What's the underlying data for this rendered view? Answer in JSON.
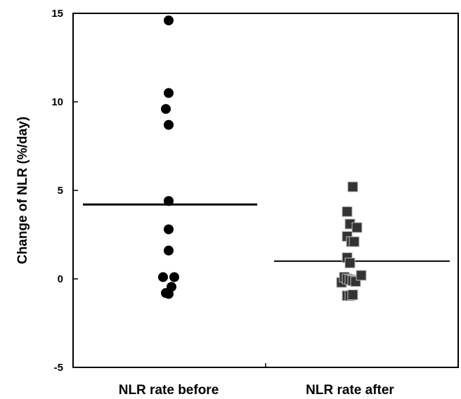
{
  "chart_data": {
    "type": "scatter",
    "title": "",
    "ylabel": "Change of  NLR  (%/day)",
    "xlabel": "",
    "categories": [
      "NLR rate before",
      "NLR rate after"
    ],
    "ylim": [
      -5,
      15
    ],
    "yticks": [
      -5,
      0,
      5,
      10,
      15
    ],
    "grid": false,
    "series": [
      {
        "category": "NLR rate before",
        "marker": "circle",
        "color": "#000000",
        "x_offsets": [
          0,
          0,
          -0.2,
          0,
          0,
          0,
          0,
          -0.4,
          0.4,
          -0.2,
          0,
          0.2
        ],
        "values": [
          14.6,
          10.5,
          9.6,
          8.7,
          4.4,
          2.8,
          1.6,
          0.1,
          0.1,
          -0.8,
          -0.85,
          -0.45
        ],
        "mean_line": 4.2
      },
      {
        "category": "NLR rate after",
        "marker": "square",
        "color": "#333333",
        "x_offsets": [
          0.2,
          -0.2,
          0,
          0.5,
          -0.2,
          0.1,
          0.3,
          -0.2,
          0,
          -0.6,
          -0.4,
          -0.2,
          0,
          0.2,
          0.4,
          0.8,
          -0.2,
          0,
          0.2
        ],
        "values": [
          5.2,
          3.8,
          3.1,
          2.9,
          2.4,
          2.1,
          2.1,
          1.2,
          0.9,
          -0.2,
          0.1,
          0.0,
          -0.05,
          -0.1,
          -0.15,
          0.2,
          -0.95,
          -0.95,
          -0.9
        ],
        "mean_line": 1.0
      }
    ]
  }
}
